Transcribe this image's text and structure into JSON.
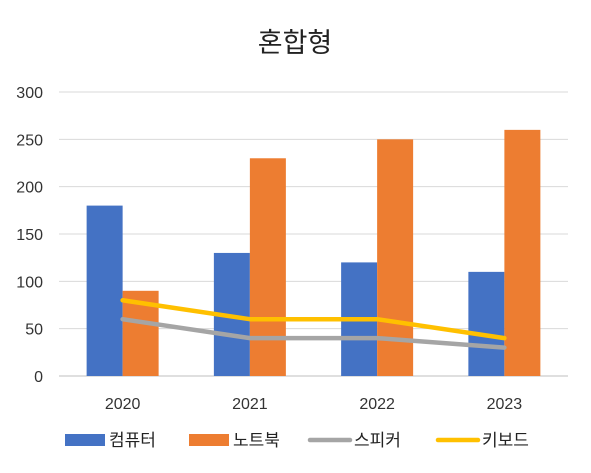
{
  "chart_data": {
    "type": "bar",
    "title": "혼합형",
    "categories": [
      "2020",
      "2021",
      "2022",
      "2023"
    ],
    "ylim": [
      0,
      300
    ],
    "yticks": [
      0,
      50,
      100,
      150,
      200,
      250,
      300
    ],
    "grid": true,
    "legend_position": "bottom",
    "series": [
      {
        "name": "컴퓨터",
        "kind": "bar",
        "color": "#4472C4",
        "values": [
          180,
          130,
          120,
          110
        ]
      },
      {
        "name": "노트북",
        "kind": "bar",
        "color": "#ED7D31",
        "values": [
          90,
          230,
          250,
          260
        ]
      },
      {
        "name": "스피커",
        "kind": "line",
        "color": "#A5A5A5",
        "values": [
          60,
          40,
          40,
          30
        ]
      },
      {
        "name": "키보드",
        "kind": "line",
        "color": "#FFC000",
        "values": [
          80,
          60,
          60,
          40
        ]
      }
    ]
  }
}
